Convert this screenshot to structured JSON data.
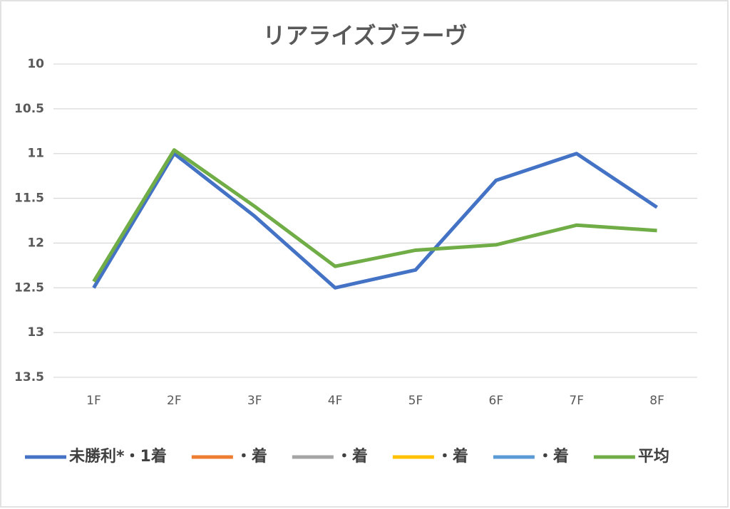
{
  "chart_data": {
    "type": "line",
    "title": "リアライズブラーヴ",
    "categories": [
      "1F",
      "2F",
      "3F",
      "4F",
      "5F",
      "6F",
      "7F",
      "8F"
    ],
    "series": [
      {
        "name": "未勝利*・1着",
        "color": "#4472c4",
        "values": [
          12.5,
          11.0,
          11.7,
          12.5,
          12.3,
          11.3,
          11.0,
          11.6
        ]
      },
      {
        "name": "・着",
        "color": "#ed7d31",
        "values": [
          null,
          null,
          null,
          null,
          null,
          null,
          null,
          null
        ]
      },
      {
        "name": "・着",
        "color": "#a5a5a5",
        "values": [
          null,
          null,
          null,
          null,
          null,
          null,
          null,
          null
        ]
      },
      {
        "name": "・着",
        "color": "#ffc000",
        "values": [
          null,
          null,
          null,
          null,
          null,
          null,
          null,
          null
        ]
      },
      {
        "name": "・着",
        "color": "#5b9bd5",
        "values": [
          null,
          null,
          null,
          null,
          null,
          null,
          null,
          null
        ]
      },
      {
        "name": "平均",
        "color": "#70ad47",
        "values": [
          12.43,
          10.96,
          11.59,
          12.26,
          12.08,
          12.02,
          11.8,
          11.86
        ]
      }
    ],
    "ylim": [
      10,
      13.5
    ],
    "yticks": [
      10,
      10.5,
      11,
      11.5,
      12,
      12.5,
      13,
      13.5
    ],
    "y_reversed": true,
    "grid": true,
    "legend": "bottom"
  }
}
